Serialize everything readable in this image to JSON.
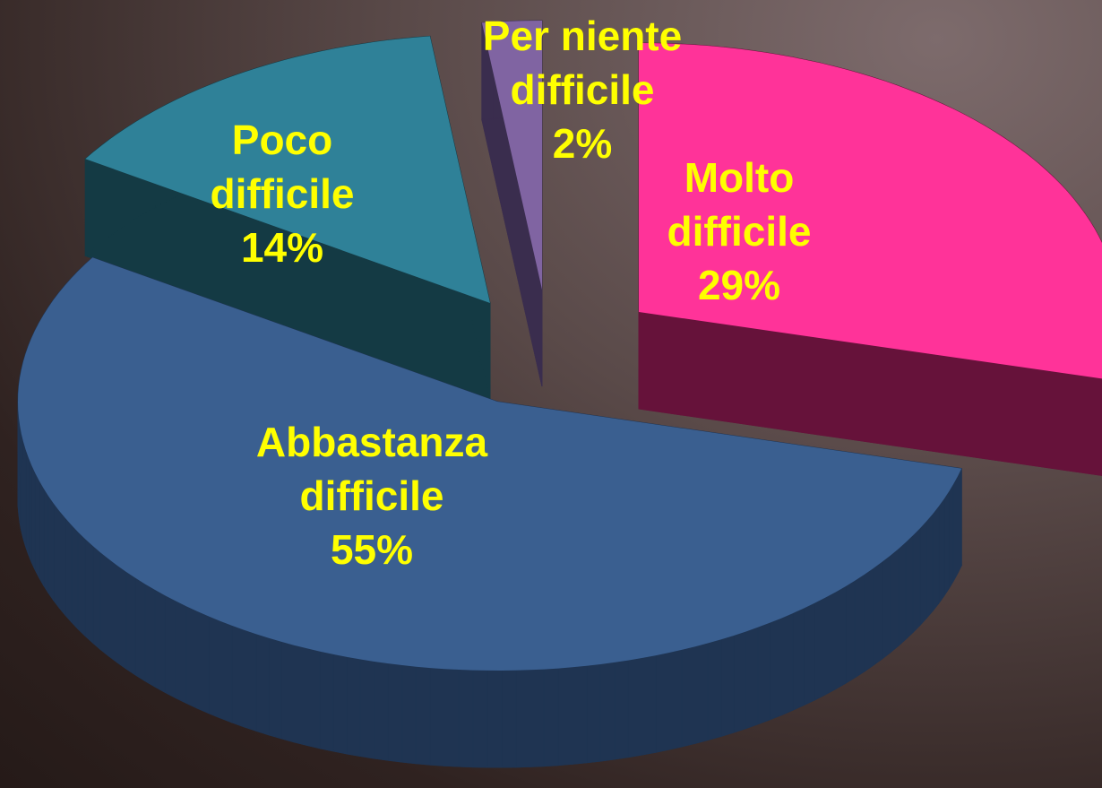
{
  "chart_data": {
    "type": "pie3d",
    "categories": [
      "Molto difficile",
      "Abbastanza difficile",
      "Poco difficile",
      "Per niente difficile"
    ],
    "values": [
      29,
      55,
      14,
      2
    ],
    "value_labels": [
      "29%",
      "55%",
      "14%",
      "2%"
    ],
    "colors": [
      "#ff3399",
      "#3a5f90",
      "#2f8198",
      "#8064a2"
    ],
    "side_colors": [
      "#66123a",
      "#1f3452",
      "#143a44",
      "#3a2d4e"
    ],
    "label_color": "#ffff00"
  }
}
